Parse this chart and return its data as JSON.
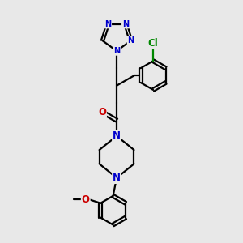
{
  "bg_color": "#e8e8e8",
  "bond_color": "#000000",
  "N_color": "#0000cc",
  "O_color": "#cc0000",
  "Cl_color": "#008800",
  "line_width": 1.6,
  "font_size_atom": 8.5,
  "fig_size": [
    3.0,
    3.0
  ],
  "dpi": 100,
  "xlim": [
    0,
    10
  ],
  "ylim": [
    0,
    10
  ]
}
